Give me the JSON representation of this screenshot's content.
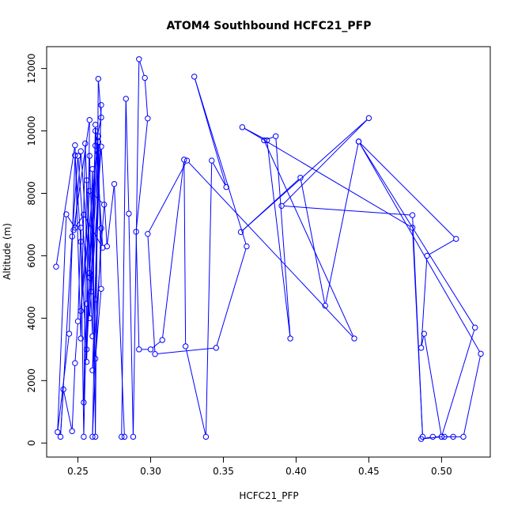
{
  "chart_data": {
    "type": "scatter",
    "title": "ATOM4 Southbound HCFC21_PFP",
    "xlabel": "HCFC21_PFP",
    "ylabel": "Altitude (m)",
    "xlim": [
      0.2285,
      0.5335
    ],
    "ylim": [
      -450,
      12700
    ],
    "xticks": [
      0.25,
      0.3,
      0.35,
      0.4,
      0.45,
      0.5
    ],
    "xtick_labels": [
      "0.25",
      "0.30",
      "0.35",
      "0.40",
      "0.45",
      "0.50"
    ],
    "yticks": [
      0,
      2000,
      4000,
      6000,
      8000,
      10000,
      12000
    ],
    "ytick_labels": [
      "0",
      "2000",
      "4000",
      "6000",
      "8000",
      "10000",
      "12000"
    ],
    "grid": false,
    "legend": "none",
    "series": [
      {
        "color": "#0000ff",
        "marker": "open-circle",
        "line": true,
        "points": [
          [
            0.235,
            5650
          ],
          [
            0.248,
            9540
          ],
          [
            0.252,
            3350
          ],
          [
            0.255,
            9600
          ],
          [
            0.259,
            4850
          ],
          [
            0.262,
            10000
          ],
          [
            0.267,
            6260
          ],
          [
            0.254,
            7320
          ],
          [
            0.247,
            6820
          ],
          [
            0.258,
            10350
          ],
          [
            0.256,
            3000
          ],
          [
            0.264,
            9300
          ],
          [
            0.262,
            4600
          ],
          [
            0.266,
            10830
          ],
          [
            0.26,
            2330
          ],
          [
            0.268,
            7640
          ],
          [
            0.258,
            8080
          ],
          [
            0.252,
            4230
          ],
          [
            0.264,
            9830
          ],
          [
            0.258,
            5450
          ],
          [
            0.252,
            9350
          ],
          [
            0.248,
            6900
          ],
          [
            0.242,
            7330
          ],
          [
            0.236,
            350
          ],
          [
            0.244,
            3500
          ],
          [
            0.248,
            9220
          ],
          [
            0.252,
            6450
          ],
          [
            0.256,
            2600
          ],
          [
            0.26,
            8780
          ],
          [
            0.262,
            200
          ],
          [
            0.264,
            11670
          ],
          [
            0.266,
            10430
          ],
          [
            0.262,
            9530
          ],
          [
            0.258,
            5300
          ],
          [
            0.254,
            1300
          ],
          [
            0.256,
            8420
          ],
          [
            0.26,
            3420
          ],
          [
            0.262,
            10200
          ],
          [
            0.266,
            6880
          ],
          [
            0.26,
            200
          ],
          [
            0.264,
            9650
          ],
          [
            0.266,
            4940
          ],
          [
            0.262,
            2700
          ],
          [
            0.258,
            9200
          ],
          [
            0.256,
            4460
          ],
          [
            0.254,
            200
          ],
          [
            0.252,
            6900
          ],
          [
            0.25,
            3900
          ],
          [
            0.248,
            2560
          ],
          [
            0.246,
            380
          ],
          [
            0.24,
            1720
          ],
          [
            0.238,
            200
          ],
          [
            0.246,
            6620
          ],
          [
            0.25,
            9200
          ],
          [
            0.258,
            4000
          ],
          [
            0.266,
            9500
          ],
          [
            0.27,
            6300
          ],
          [
            0.275,
            8300
          ],
          [
            0.282,
            200
          ],
          [
            0.28,
            200
          ],
          [
            0.283,
            11030
          ],
          [
            0.285,
            7350
          ],
          [
            0.288,
            200
          ],
          [
            0.292,
            12300
          ],
          [
            0.296,
            11700
          ],
          [
            0.298,
            10400
          ],
          [
            0.29,
            6770
          ],
          [
            0.292,
            3000
          ],
          [
            0.3,
            3000
          ],
          [
            0.308,
            3300
          ],
          [
            0.323,
            9080
          ],
          [
            0.324,
            3100
          ],
          [
            0.338,
            200
          ],
          [
            0.342,
            9050
          ],
          [
            0.352,
            8200
          ],
          [
            0.33,
            11740
          ],
          [
            0.366,
            6300
          ],
          [
            0.345,
            3050
          ],
          [
            0.303,
            2850
          ],
          [
            0.298,
            6700
          ],
          [
            0.325,
            9050
          ],
          [
            0.44,
            3350
          ],
          [
            0.378,
            9700
          ],
          [
            0.386,
            9830
          ],
          [
            0.396,
            3350
          ],
          [
            0.38,
            9700
          ],
          [
            0.363,
            10120
          ],
          [
            0.48,
            6900
          ],
          [
            0.487,
            200
          ],
          [
            0.48,
            7300
          ],
          [
            0.39,
            7600
          ],
          [
            0.45,
            10410
          ],
          [
            0.362,
            6760
          ],
          [
            0.403,
            8500
          ],
          [
            0.42,
            4400
          ],
          [
            0.443,
            9660
          ],
          [
            0.51,
            6540
          ],
          [
            0.49,
            6000
          ],
          [
            0.486,
            3050
          ],
          [
            0.488,
            3500
          ],
          [
            0.5,
            200
          ],
          [
            0.523,
            3700
          ],
          [
            0.443,
            9660
          ],
          [
            0.527,
            2860
          ],
          [
            0.515,
            200
          ],
          [
            0.5,
            200
          ],
          [
            0.486,
            130
          ],
          [
            0.494,
            200
          ],
          [
            0.502,
            200
          ],
          [
            0.508,
            200
          ]
        ]
      }
    ]
  }
}
